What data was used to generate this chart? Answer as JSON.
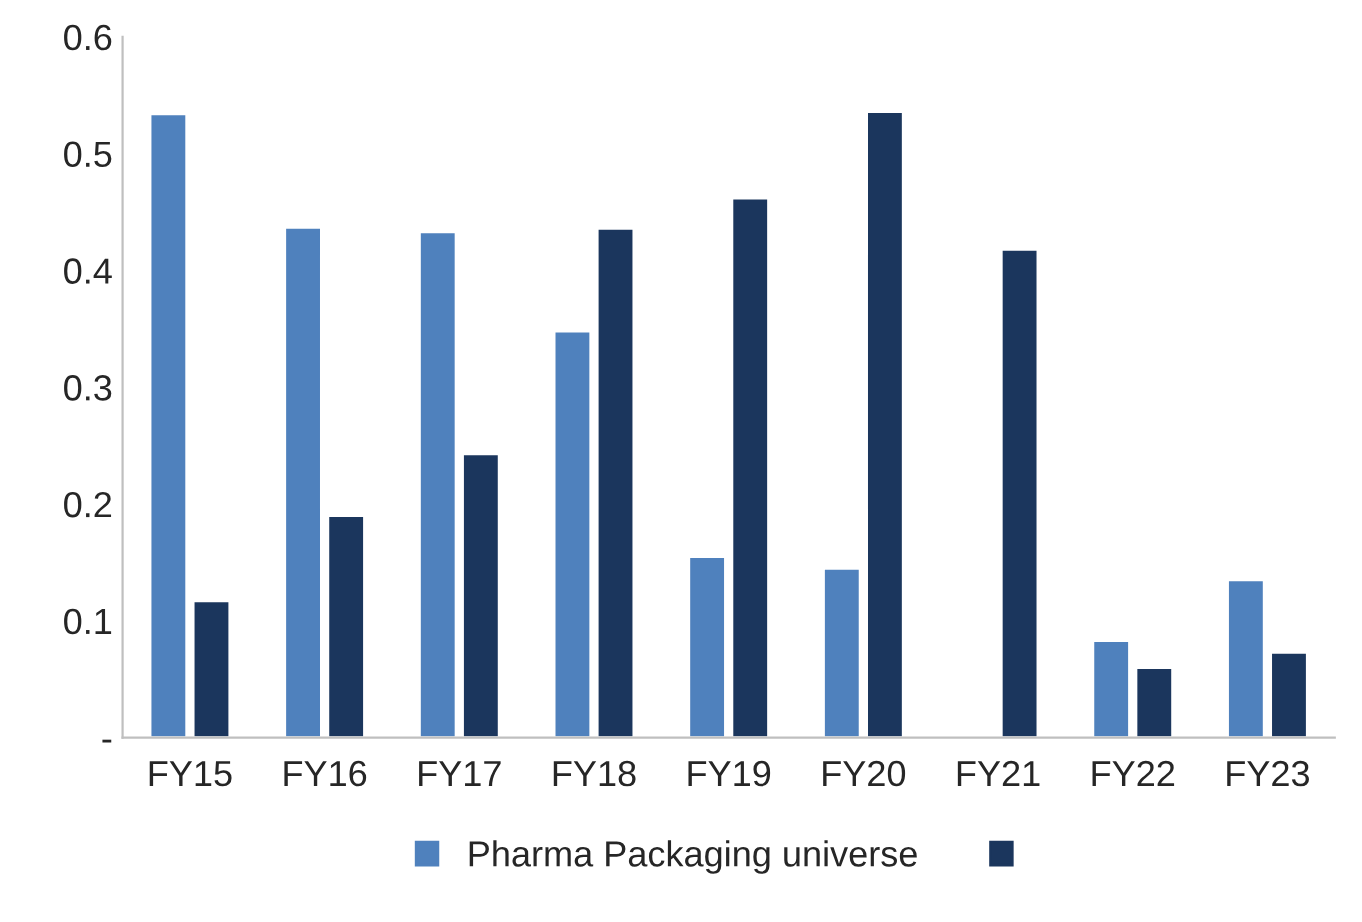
{
  "chart_data": {
    "type": "bar",
    "categories": [
      "FY15",
      "FY16",
      "FY17",
      "FY18",
      "FY19",
      "FY20",
      "FY21",
      "FY22",
      "FY23"
    ],
    "series": [
      {
        "name": "Pharma Packaging universe",
        "color": "#4f81bd",
        "values": [
          0.534,
          0.437,
          0.433,
          0.348,
          0.155,
          0.145,
          null,
          0.083,
          0.135
        ]
      },
      {
        "color": "#1b365d",
        "values": [
          0.117,
          0.19,
          0.243,
          0.436,
          0.462,
          0.536,
          0.418,
          0.06,
          0.073
        ]
      }
    ],
    "ylim": [
      0,
      0.6
    ],
    "yticks": [
      {
        "value": 0,
        "label": "-"
      },
      0.1,
      0.2,
      0.3,
      0.4,
      0.5,
      0.6
    ],
    "grid": false,
    "legend": "bottom"
  }
}
